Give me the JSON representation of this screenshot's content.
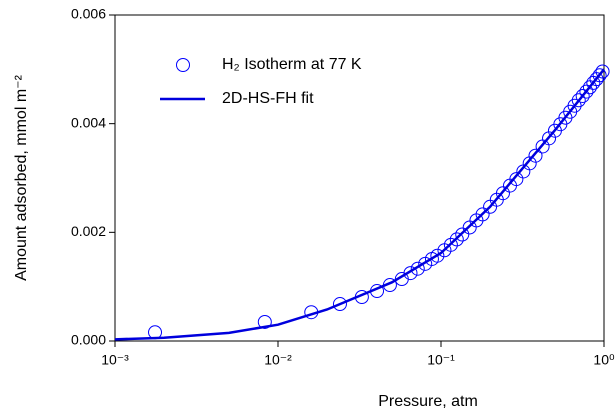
{
  "chart_data": {
    "type": "line",
    "xlabel": "Pressure, atm",
    "ylabel": "Amount adsorbed, mmol m⁻²",
    "xscale": "log",
    "xlim": [
      0.001,
      1
    ],
    "xticks": [
      {
        "value": 0.001,
        "label": "10⁻³"
      },
      {
        "value": 0.01,
        "label": "10⁻²"
      },
      {
        "value": 0.1,
        "label": "10⁻¹"
      },
      {
        "value": 1,
        "label": "10⁰"
      }
    ],
    "ylim": [
      0,
      0.006
    ],
    "yticks": [
      {
        "value": 0,
        "label": "0.000"
      },
      {
        "value": 0.002,
        "label": "0.002"
      },
      {
        "value": 0.004,
        "label": "0.004"
      },
      {
        "value": 0.006,
        "label": "0.006"
      }
    ],
    "legend": "upper left",
    "series": [
      {
        "name": "H₂ Isotherm at 77 K",
        "type": "scatter",
        "color": "#0000ff",
        "x": [
          0.00176,
          0.0083,
          0.016,
          0.024,
          0.0327,
          0.0405,
          0.0486,
          0.0575,
          0.065,
          0.072,
          0.08,
          0.088,
          0.095,
          0.105,
          0.115,
          0.125,
          0.135,
          0.15,
          0.165,
          0.18,
          0.2,
          0.22,
          0.24,
          0.265,
          0.29,
          0.32,
          0.35,
          0.38,
          0.42,
          0.46,
          0.5,
          0.54,
          0.58,
          0.62,
          0.66,
          0.7,
          0.74,
          0.78,
          0.82,
          0.86,
          0.9,
          0.94,
          0.98
        ],
        "values": [
          0.00016,
          0.00035,
          0.00053,
          0.00068,
          0.00081,
          0.00092,
          0.00103,
          0.00114,
          0.00125,
          0.00133,
          0.00142,
          0.00151,
          0.00157,
          0.00167,
          0.00177,
          0.00187,
          0.00196,
          0.00209,
          0.00222,
          0.00233,
          0.00247,
          0.0026,
          0.00272,
          0.00286,
          0.00298,
          0.00312,
          0.00327,
          0.00341,
          0.00358,
          0.00373,
          0.00387,
          0.00399,
          0.00411,
          0.00422,
          0.00433,
          0.00443,
          0.00451,
          0.00459,
          0.00467,
          0.00475,
          0.00482,
          0.00489,
          0.00496
        ]
      },
      {
        "name": "2D-HS-FH fit",
        "type": "line",
        "color": "#0000dd",
        "x": [
          0.001,
          0.002,
          0.005,
          0.01,
          0.02,
          0.05,
          0.1,
          0.2,
          0.5,
          1
        ],
        "values": [
          3e-05,
          6e-05,
          0.00015,
          0.0003,
          0.00058,
          0.00108,
          0.00162,
          0.00247,
          0.00388,
          0.005
        ]
      }
    ]
  }
}
